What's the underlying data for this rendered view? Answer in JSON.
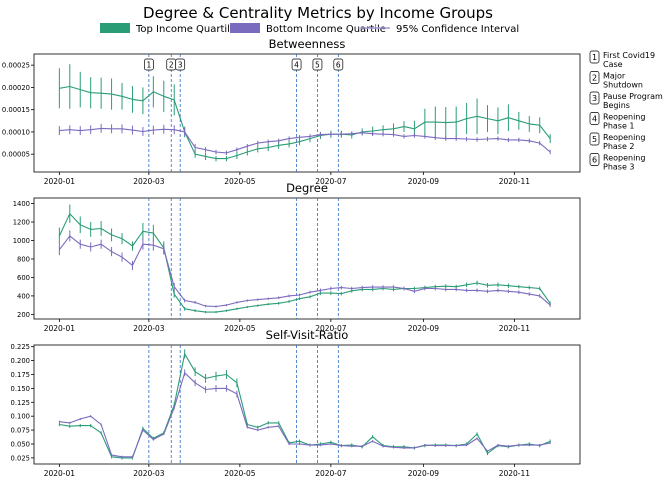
{
  "figure": {
    "title": "Degree & Centrality Metrics by Income Groups",
    "legend": [
      {
        "label": "Top Income Quartile",
        "kind": "patch",
        "color": "#2a9d77"
      },
      {
        "label": "Bottom Income Quartile",
        "kind": "patch",
        "color": "#7b6bbf"
      },
      {
        "label": "95% Confidence Interval",
        "kind": "line",
        "color": "#a79ad9"
      }
    ],
    "events": [
      {
        "num": "1",
        "label": "First Covid19\nCase",
        "date": "2020-03-01"
      },
      {
        "num": "2",
        "label": "Major\nShutdown",
        "date": "2020-03-16"
      },
      {
        "num": "3",
        "label": "Pause Program\nBegins",
        "date": "2020-03-22"
      },
      {
        "num": "4",
        "label": "Reopening\nPhase 1",
        "date": "2020-06-08"
      },
      {
        "num": "5",
        "label": "Reopening\nPhase 2",
        "date": "2020-06-22"
      },
      {
        "num": "6",
        "label": "Reopening\nPhase 3",
        "date": "2020-07-06"
      }
    ],
    "colors": {
      "top": "#2a9d77",
      "bottom": "#7b6bbf",
      "event_line": "#2d6bc4"
    }
  },
  "chart_data": [
    {
      "type": "line",
      "title": "Betweenness",
      "xlim": [
        "2019-12-15",
        "2020-12-15"
      ],
      "ylim": [
        1e-05,
        0.000275
      ],
      "xticks": [
        "2020-01",
        "2020-03",
        "2020-05",
        "2020-07",
        "2020-09",
        "2020-11"
      ],
      "yticks": [
        5e-05,
        0.0001,
        0.00015,
        0.0002,
        0.00025
      ],
      "ytick_labels": [
        "0.00005",
        "0.00010",
        "0.00015",
        "0.00020",
        "0.00025"
      ],
      "x": [
        "2020-01-01",
        "2020-01-08",
        "2020-01-15",
        "2020-01-22",
        "2020-01-29",
        "2020-02-05",
        "2020-02-12",
        "2020-02-19",
        "2020-02-26",
        "2020-03-04",
        "2020-03-11",
        "2020-03-18",
        "2020-03-25",
        "2020-04-01",
        "2020-04-08",
        "2020-04-15",
        "2020-04-22",
        "2020-04-29",
        "2020-05-06",
        "2020-05-13",
        "2020-05-20",
        "2020-05-27",
        "2020-06-03",
        "2020-06-10",
        "2020-06-17",
        "2020-06-24",
        "2020-07-01",
        "2020-07-08",
        "2020-07-15",
        "2020-07-22",
        "2020-07-29",
        "2020-08-05",
        "2020-08-12",
        "2020-08-19",
        "2020-08-26",
        "2020-09-02",
        "2020-09-09",
        "2020-09-16",
        "2020-09-23",
        "2020-09-30",
        "2020-10-07",
        "2020-10-14",
        "2020-10-21",
        "2020-10-28",
        "2020-11-04",
        "2020-11-11",
        "2020-11-18",
        "2020-11-25"
      ],
      "series": [
        {
          "name": "Top Income Quartile",
          "color": "#2a9d77",
          "values": [
            0.000198,
            0.000202,
            0.000195,
            0.000188,
            0.000187,
            0.000185,
            0.00018,
            0.000173,
            0.00017,
            0.00019,
            0.00018,
            0.000172,
            0.0001,
            5e-05,
            4.5e-05,
            4e-05,
            4e-05,
            4.7e-05,
            5.5e-05,
            6.2e-05,
            6.5e-05,
            7e-05,
            7.3e-05,
            7.8e-05,
            8.5e-05,
            9.2e-05,
            9.5e-05,
            9.5e-05,
            9.3e-05,
            0.0001,
            0.000102,
            0.000105,
            0.000107,
            0.000112,
            0.000107,
            0.000122,
            0.000122,
            0.000121,
            0.000122,
            0.00013,
            0.000135,
            0.00013,
            0.000125,
            0.000132,
            0.000125,
            0.000118,
            0.000115,
            8.5e-05
          ],
          "ci": [
            4.5e-05,
            5e-05,
            4e-05,
            3.5e-05,
            3.5e-05,
            3.5e-05,
            3e-05,
            3e-05,
            3e-05,
            3.5e-05,
            3.5e-05,
            3.5e-05,
            1.2e-05,
            8e-06,
            8e-06,
            6e-06,
            6e-06,
            8e-06,
            8e-06,
            8e-06,
            8e-06,
            8e-06,
            8e-06,
            8e-06,
            8e-06,
            8e-06,
            8e-06,
            8e-06,
            8e-06,
            8e-06,
            1e-05,
            1e-05,
            1.2e-05,
            1.2e-05,
            1.8e-05,
            3e-05,
            3.5e-05,
            3.5e-05,
            3.5e-05,
            3.5e-05,
            4e-05,
            3e-05,
            3e-05,
            3e-05,
            2e-05,
            1.8e-05,
            1.8e-05,
            1e-05
          ]
        },
        {
          "name": "Bottom Income Quartile",
          "color": "#7b6bbf",
          "values": [
            0.000103,
            0.000105,
            0.000103,
            0.000105,
            0.000108,
            0.000107,
            0.000107,
            0.000104,
            0.000101,
            0.000104,
            0.000106,
            0.000105,
            0.0001,
            6.5e-05,
            6e-05,
            5.5e-05,
            5.3e-05,
            6e-05,
            6.8e-05,
            7.5e-05,
            7.8e-05,
            8e-05,
            8.5e-05,
            8.8e-05,
            9e-05,
            9.4e-05,
            9.5e-05,
            9.5e-05,
            9.6e-05,
            9.8e-05,
            9.6e-05,
            9.5e-05,
            9.4e-05,
            9e-05,
            9.2e-05,
            9e-05,
            8.7e-05,
            8.5e-05,
            8.5e-05,
            8.4e-05,
            8.3e-05,
            8.4e-05,
            8.5e-05,
            8.2e-05,
            8.2e-05,
            8e-05,
            7.5e-05,
            5.5e-05
          ],
          "ci": [
            1e-05,
            1e-05,
            1e-05,
            1e-05,
            1e-05,
            1e-05,
            1e-05,
            1e-05,
            1e-05,
            1e-05,
            1e-05,
            1e-05,
            1e-05,
            8e-06,
            6e-06,
            5e-06,
            5e-06,
            5e-06,
            5e-06,
            5e-06,
            5e-06,
            5e-06,
            5e-06,
            5e-06,
            5e-06,
            5e-06,
            5e-06,
            5e-06,
            5e-06,
            5e-06,
            5e-06,
            5e-06,
            5e-06,
            5e-06,
            5e-06,
            5e-06,
            5e-06,
            5e-06,
            5e-06,
            5e-06,
            5e-06,
            5e-06,
            5e-06,
            5e-06,
            5e-06,
            5e-06,
            5e-06,
            5e-06
          ]
        }
      ]
    },
    {
      "type": "line",
      "title": "Degree",
      "xlim": [
        "2019-12-15",
        "2020-12-15"
      ],
      "ylim": [
        150,
        1460
      ],
      "xticks": [
        "2020-01",
        "2020-03",
        "2020-05",
        "2020-07",
        "2020-09",
        "2020-11"
      ],
      "yticks": [
        200,
        400,
        600,
        800,
        1000,
        1200,
        1400
      ],
      "ytick_labels": [
        "200",
        "400",
        "600",
        "800",
        "1000",
        "1200",
        "1400"
      ],
      "x": [
        "2020-01-01",
        "2020-01-08",
        "2020-01-15",
        "2020-01-22",
        "2020-01-29",
        "2020-02-05",
        "2020-02-12",
        "2020-02-19",
        "2020-02-26",
        "2020-03-04",
        "2020-03-11",
        "2020-03-18",
        "2020-03-25",
        "2020-04-01",
        "2020-04-08",
        "2020-04-15",
        "2020-04-22",
        "2020-04-29",
        "2020-05-06",
        "2020-05-13",
        "2020-05-20",
        "2020-05-27",
        "2020-06-03",
        "2020-06-10",
        "2020-06-17",
        "2020-06-24",
        "2020-07-01",
        "2020-07-08",
        "2020-07-15",
        "2020-07-22",
        "2020-07-29",
        "2020-08-05",
        "2020-08-12",
        "2020-08-19",
        "2020-08-26",
        "2020-09-02",
        "2020-09-09",
        "2020-09-16",
        "2020-09-23",
        "2020-09-30",
        "2020-10-07",
        "2020-10-14",
        "2020-10-21",
        "2020-10-28",
        "2020-11-04",
        "2020-11-11",
        "2020-11-18",
        "2020-11-25"
      ],
      "series": [
        {
          "name": "Top Income Quartile",
          "color": "#2a9d77",
          "values": [
            1050,
            1290,
            1170,
            1120,
            1130,
            1060,
            1020,
            940,
            1100,
            1080,
            920,
            420,
            260,
            240,
            225,
            225,
            240,
            260,
            280,
            295,
            310,
            320,
            340,
            370,
            390,
            430,
            430,
            425,
            455,
            470,
            470,
            480,
            470,
            480,
            480,
            490,
            500,
            505,
            500,
            520,
            540,
            515,
            520,
            510,
            500,
            490,
            480,
            320
          ],
          "ci": [
            90,
            100,
            90,
            80,
            80,
            70,
            60,
            50,
            90,
            90,
            70,
            40,
            20,
            15,
            12,
            12,
            12,
            12,
            12,
            12,
            12,
            15,
            15,
            15,
            15,
            20,
            20,
            20,
            20,
            20,
            20,
            20,
            20,
            20,
            20,
            20,
            20,
            20,
            20,
            25,
            25,
            25,
            25,
            25,
            20,
            20,
            20,
            20
          ]
        },
        {
          "name": "Bottom Income Quartile",
          "color": "#7b6bbf",
          "values": [
            900,
            1050,
            960,
            930,
            960,
            880,
            820,
            730,
            960,
            950,
            910,
            500,
            350,
            330,
            290,
            285,
            300,
            330,
            350,
            360,
            370,
            380,
            400,
            410,
            440,
            460,
            480,
            490,
            480,
            490,
            495,
            495,
            495,
            480,
            450,
            480,
            480,
            470,
            470,
            460,
            460,
            450,
            460,
            450,
            440,
            420,
            400,
            300
          ],
          "ci": [
            60,
            60,
            50,
            50,
            50,
            50,
            50,
            50,
            60,
            60,
            60,
            40,
            20,
            15,
            12,
            12,
            12,
            12,
            12,
            12,
            12,
            15,
            15,
            15,
            15,
            20,
            20,
            20,
            20,
            20,
            20,
            20,
            20,
            20,
            20,
            20,
            20,
            20,
            20,
            20,
            20,
            20,
            20,
            20,
            20,
            20,
            20,
            20
          ]
        }
      ]
    },
    {
      "type": "line",
      "title": "Self-Visit-Ratio",
      "xlim": [
        "2019-12-15",
        "2020-12-15"
      ],
      "ylim": [
        0.014,
        0.228
      ],
      "xticks": [
        "2020-01",
        "2020-03",
        "2020-05",
        "2020-07",
        "2020-09",
        "2020-11"
      ],
      "yticks": [
        0.025,
        0.05,
        0.075,
        0.1,
        0.125,
        0.15,
        0.175,
        0.2,
        0.225
      ],
      "ytick_labels": [
        "0.025",
        "0.050",
        "0.075",
        "0.100",
        "0.125",
        "0.150",
        "0.175",
        "0.200",
        "0.225"
      ],
      "x": [
        "2020-01-01",
        "2020-01-08",
        "2020-01-15",
        "2020-01-22",
        "2020-01-29",
        "2020-02-05",
        "2020-02-12",
        "2020-02-19",
        "2020-02-26",
        "2020-03-04",
        "2020-03-11",
        "2020-03-18",
        "2020-03-25",
        "2020-04-01",
        "2020-04-08",
        "2020-04-15",
        "2020-04-22",
        "2020-04-29",
        "2020-05-06",
        "2020-05-13",
        "2020-05-20",
        "2020-05-27",
        "2020-06-03",
        "2020-06-10",
        "2020-06-17",
        "2020-06-24",
        "2020-07-01",
        "2020-07-08",
        "2020-07-15",
        "2020-07-22",
        "2020-07-29",
        "2020-08-05",
        "2020-08-12",
        "2020-08-19",
        "2020-08-26",
        "2020-09-02",
        "2020-09-09",
        "2020-09-16",
        "2020-09-23",
        "2020-09-30",
        "2020-10-07",
        "2020-10-14",
        "2020-10-21",
        "2020-10-28",
        "2020-11-04",
        "2020-11-11",
        "2020-11-18",
        "2020-11-25"
      ],
      "series": [
        {
          "name": "Top Income Quartile",
          "color": "#2a9d77",
          "values": [
            0.085,
            0.082,
            0.083,
            0.083,
            0.07,
            0.027,
            0.025,
            0.025,
            0.078,
            0.06,
            0.07,
            0.12,
            0.212,
            0.18,
            0.168,
            0.172,
            0.175,
            0.16,
            0.085,
            0.08,
            0.088,
            0.088,
            0.052,
            0.055,
            0.048,
            0.05,
            0.053,
            0.047,
            0.048,
            0.045,
            0.063,
            0.047,
            0.045,
            0.045,
            0.043,
            0.047,
            0.048,
            0.048,
            0.047,
            0.05,
            0.068,
            0.033,
            0.047,
            0.045,
            0.048,
            0.05,
            0.047,
            0.055
          ],
          "ci": [
            0.003,
            0.003,
            0.003,
            0.003,
            0.003,
            0.003,
            0.003,
            0.003,
            0.003,
            0.003,
            0.003,
            0.004,
            0.008,
            0.008,
            0.008,
            0.008,
            0.008,
            0.008,
            0.003,
            0.003,
            0.003,
            0.003,
            0.003,
            0.003,
            0.003,
            0.003,
            0.003,
            0.003,
            0.003,
            0.003,
            0.003,
            0.003,
            0.003,
            0.003,
            0.003,
            0.003,
            0.003,
            0.003,
            0.003,
            0.003,
            0.003,
            0.003,
            0.003,
            0.003,
            0.003,
            0.003,
            0.003,
            0.003
          ]
        },
        {
          "name": "Bottom Income Quartile",
          "color": "#7b6bbf",
          "values": [
            0.09,
            0.088,
            0.095,
            0.1,
            0.085,
            0.03,
            0.027,
            0.027,
            0.075,
            0.058,
            0.068,
            0.115,
            0.178,
            0.16,
            0.148,
            0.15,
            0.15,
            0.14,
            0.08,
            0.075,
            0.08,
            0.082,
            0.05,
            0.05,
            0.048,
            0.048,
            0.05,
            0.047,
            0.046,
            0.046,
            0.055,
            0.046,
            0.044,
            0.043,
            0.043,
            0.048,
            0.047,
            0.047,
            0.047,
            0.048,
            0.06,
            0.037,
            0.048,
            0.046,
            0.048,
            0.048,
            0.048,
            0.052
          ],
          "ci": [
            0.002,
            0.002,
            0.002,
            0.002,
            0.002,
            0.002,
            0.002,
            0.002,
            0.002,
            0.002,
            0.002,
            0.003,
            0.006,
            0.006,
            0.006,
            0.006,
            0.006,
            0.006,
            0.002,
            0.002,
            0.002,
            0.002,
            0.002,
            0.002,
            0.002,
            0.002,
            0.002,
            0.002,
            0.002,
            0.002,
            0.002,
            0.002,
            0.002,
            0.002,
            0.002,
            0.002,
            0.002,
            0.002,
            0.002,
            0.002,
            0.002,
            0.002,
            0.002,
            0.002,
            0.002,
            0.002,
            0.002,
            0.002
          ]
        }
      ]
    }
  ]
}
